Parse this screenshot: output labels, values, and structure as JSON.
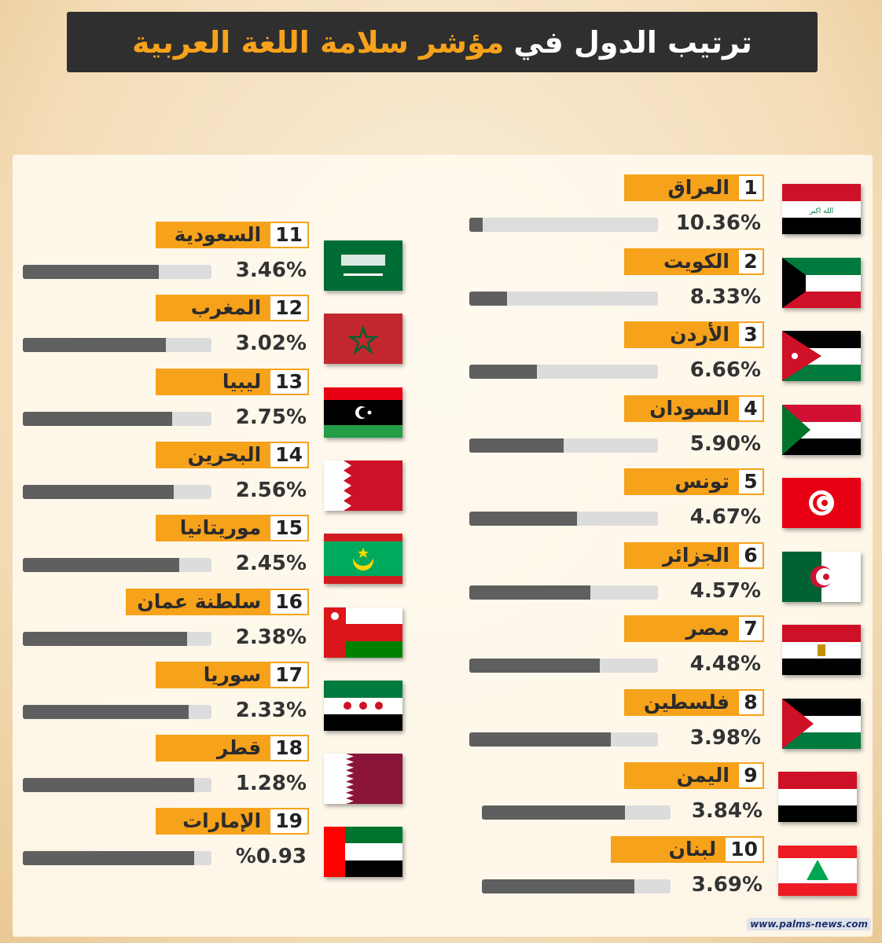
{
  "title": {
    "part_white": "ترتيب الدول في",
    "part_orange": "مؤشر سلامة اللغة العربية"
  },
  "colors": {
    "accent": "#f7a21b",
    "title_bg": "#2f2f2f",
    "bar_track": "#dcdcdc",
    "bar_fill": "#5f5f5f"
  },
  "footer": "www.palms-news.com",
  "chart_data": {
    "type": "bar",
    "title": "ترتيب الدول في مؤشر سلامة اللغة العربية",
    "items": [
      {
        "rank": "1",
        "country": "العراق",
        "value_label": "10.36%",
        "value": 10.36,
        "bar_fill_percent": 7,
        "flag": "iraq"
      },
      {
        "rank": "2",
        "country": "الكويت",
        "value_label": "8.33%",
        "value": 8.33,
        "bar_fill_percent": 20,
        "flag": "kuwait"
      },
      {
        "rank": "3",
        "country": "الأردن",
        "value_label": "6.66%",
        "value": 6.66,
        "bar_fill_percent": 36,
        "flag": "jordan"
      },
      {
        "rank": "4",
        "country": "السودان",
        "value_label": "5.90%",
        "value": 5.9,
        "bar_fill_percent": 50,
        "flag": "sudan"
      },
      {
        "rank": "5",
        "country": "تونس",
        "value_label": "4.67%",
        "value": 4.67,
        "bar_fill_percent": 57,
        "flag": "tunisia"
      },
      {
        "rank": "6",
        "country": "الجزائر",
        "value_label": "4.57%",
        "value": 4.57,
        "bar_fill_percent": 64,
        "flag": "algeria"
      },
      {
        "rank": "7",
        "country": "مصر",
        "value_label": "4.48%",
        "value": 4.48,
        "bar_fill_percent": 69,
        "flag": "egypt"
      },
      {
        "rank": "8",
        "country": "فلسطين",
        "value_label": "3.98%",
        "value": 3.98,
        "bar_fill_percent": 75,
        "flag": "palestine"
      },
      {
        "rank": "9",
        "country": "اليمن",
        "value_label": "3.84%",
        "value": 3.84,
        "bar_fill_percent": 76,
        "flag": "yemen"
      },
      {
        "rank": "10",
        "country": "لبنان",
        "value_label": "3.69%",
        "value": 3.69,
        "bar_fill_percent": 81,
        "flag": "lebanon"
      },
      {
        "rank": "11",
        "country": "السعودية",
        "value_label": "3.46%",
        "value": 3.46,
        "bar_fill_percent": 72,
        "flag": "saudi"
      },
      {
        "rank": "12",
        "country": "المغرب",
        "value_label": "3.02%",
        "value": 3.02,
        "bar_fill_percent": 76,
        "flag": "morocco"
      },
      {
        "rank": "13",
        "country": "ليبيا",
        "value_label": "2.75%",
        "value": 2.75,
        "bar_fill_percent": 79,
        "flag": "libya"
      },
      {
        "rank": "14",
        "country": "البحرين",
        "value_label": "2.56%",
        "value": 2.56,
        "bar_fill_percent": 80,
        "flag": "bahrain"
      },
      {
        "rank": "15",
        "country": "موريتانيا",
        "value_label": "2.45%",
        "value": 2.45,
        "bar_fill_percent": 83,
        "flag": "mauritania"
      },
      {
        "rank": "16",
        "country": "سلطنة عمان",
        "value_label": "2.38%",
        "value": 2.38,
        "bar_fill_percent": 87,
        "flag": "oman"
      },
      {
        "rank": "17",
        "country": "سوريا",
        "value_label": "2.33%",
        "value": 2.33,
        "bar_fill_percent": 88,
        "flag": "syria"
      },
      {
        "rank": "18",
        "country": "قطر",
        "value_label": "1.28%",
        "value": 1.28,
        "bar_fill_percent": 91,
        "flag": "qatar"
      },
      {
        "rank": "19",
        "country": "الإمارات",
        "value_label": "%0.93",
        "value": 0.93,
        "bar_fill_percent": 91,
        "flag": "uae"
      }
    ]
  }
}
